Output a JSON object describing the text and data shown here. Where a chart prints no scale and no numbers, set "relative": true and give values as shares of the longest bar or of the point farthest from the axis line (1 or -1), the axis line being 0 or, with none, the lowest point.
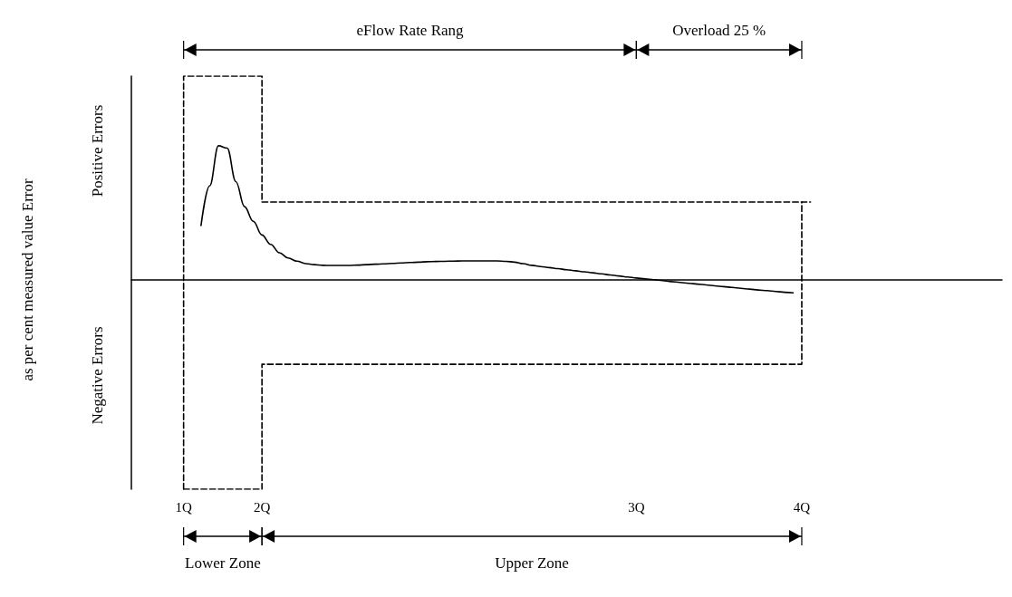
{
  "chart_data": {
    "type": "line",
    "relative": true,
    "grid": false,
    "marker": "none",
    "annotations": [
      "eFlow Rate Rang",
      "Overload 25 %",
      "Lower Zone",
      "Upper Zone",
      "Positive Errors",
      "Negative Errors",
      "as per cent measured value Error"
    ],
    "categories": [
      null,
      null,
      null,
      null,
      null,
      null,
      "1Q",
      null,
      null,
      null,
      null,
      null,
      null,
      null,
      null,
      "2Q",
      null,
      null,
      null,
      null,
      null,
      null,
      null,
      null,
      null,
      null,
      null,
      null,
      null,
      null,
      null,
      null,
      null,
      null,
      null,
      null,
      null,
      null,
      null,
      null,
      null,
      null,
      null,
      null,
      null,
      null,
      null,
      null,
      null,
      null,
      null,
      null,
      null,
      null,
      null,
      null,
      null,
      null,
      "3Q",
      null,
      null,
      null,
      null,
      null,
      null,
      null,
      null,
      null,
      null,
      null,
      null,
      null,
      null,
      null,
      null,
      null,
      null,
      "4Q",
      null,
      null,
      null,
      null,
      null,
      null,
      null,
      null,
      null,
      null,
      null,
      null,
      null,
      null,
      null,
      null,
      null,
      null,
      null,
      null,
      null,
      null,
      null
    ],
    "series": [
      {
        "color": "#000000",
        "line_style": "solid",
        "values": [
          null,
          null,
          null,
          null,
          null,
          null,
          null,
          null,
          0.26,
          0.45,
          0.641,
          0.63,
          0.47,
          0.35,
          0.28,
          0.215,
          0.17,
          0.13,
          0.105,
          0.09,
          0.078,
          0.073,
          0.07,
          0.069,
          0.069,
          0.069,
          0.071,
          0.073,
          0.075,
          0.077,
          0.079,
          0.081,
          0.083,
          0.085,
          0.087,
          0.088,
          0.089,
          0.09,
          0.091,
          0.091,
          0.091,
          0.091,
          0.091,
          0.089,
          0.085,
          0.078,
          0.07,
          0.064,
          0.059,
          0.054,
          0.049,
          0.044,
          0.039,
          0.034,
          0.029,
          0.024,
          0.019,
          0.014,
          0.009,
          0.005,
          0.001,
          -0.003,
          -0.008,
          -0.012,
          -0.016,
          -0.02,
          -0.024,
          -0.028,
          -0.032,
          -0.036,
          -0.04,
          -0.044,
          -0.048,
          -0.051,
          -0.055,
          -0.059,
          -0.062,
          null,
          null,
          null,
          null,
          null,
          null,
          null,
          null,
          null,
          null,
          null,
          null,
          null,
          null,
          null,
          null,
          null,
          null,
          null,
          null,
          null,
          null,
          null,
          null
        ]
      },
      {
        "type": "step",
        "color": "#000000",
        "line_style": "dashed",
        "values": [
          null,
          null,
          null,
          null,
          null,
          null,
          -1,
          0.974,
          0.974,
          0.974,
          0.974,
          0.974,
          0.974,
          0.974,
          0.974,
          0.974,
          0.372,
          0.372,
          0.372,
          0.372,
          0.372,
          0.372,
          0.372,
          0.372,
          0.372,
          0.372,
          0.372,
          0.372,
          0.372,
          0.372,
          0.372,
          0.372,
          0.372,
          0.372,
          0.372,
          0.372,
          0.372,
          0.372,
          0.372,
          0.372,
          0.372,
          0.372,
          0.372,
          0.372,
          0.372,
          0.372,
          0.372,
          0.372,
          0.372,
          0.372,
          0.372,
          0.372,
          0.372,
          0.372,
          0.372,
          0.372,
          0.372,
          0.372,
          0.372,
          0.372,
          0.372,
          0.372,
          0.372,
          0.372,
          0.372,
          0.372,
          0.372,
          0.372,
          0.372,
          0.372,
          0.372,
          0.372,
          0.372,
          0.372,
          0.372,
          0.372,
          0.372,
          0.372,
          null,
          null,
          null,
          null,
          null,
          null,
          null,
          null,
          null,
          null,
          null,
          null,
          null,
          null,
          null,
          null,
          null,
          null,
          null,
          null,
          null,
          null,
          null
        ]
      },
      {
        "type": "step",
        "color": "#000000",
        "line_style": "dashed",
        "values": [
          null,
          null,
          null,
          null,
          null,
          null,
          -1,
          -1,
          -1,
          -1,
          -1,
          -1,
          -1,
          -1,
          -1,
          -1,
          -0.403,
          -0.403,
          -0.403,
          -0.403,
          -0.403,
          -0.403,
          -0.403,
          -0.403,
          -0.403,
          -0.403,
          -0.403,
          -0.403,
          -0.403,
          -0.403,
          -0.403,
          -0.403,
          -0.403,
          -0.403,
          -0.403,
          -0.403,
          -0.403,
          -0.403,
          -0.403,
          -0.403,
          -0.403,
          -0.403,
          -0.403,
          -0.403,
          -0.403,
          -0.403,
          -0.403,
          -0.403,
          -0.403,
          -0.403,
          -0.403,
          -0.403,
          -0.403,
          -0.403,
          -0.403,
          -0.403,
          -0.403,
          -0.403,
          -0.403,
          -0.403,
          -0.403,
          -0.403,
          -0.403,
          -0.403,
          -0.403,
          -0.403,
          -0.403,
          -0.403,
          -0.403,
          -0.403,
          -0.403,
          -0.403,
          -0.403,
          -0.403,
          -0.403,
          -0.403,
          -0.403,
          -0.403,
          0.372,
          null,
          null,
          null,
          null,
          null,
          null,
          null,
          null,
          null,
          null,
          null,
          null,
          null,
          null,
          null,
          null,
          null,
          null,
          null,
          null,
          null,
          null
        ]
      }
    ]
  }
}
